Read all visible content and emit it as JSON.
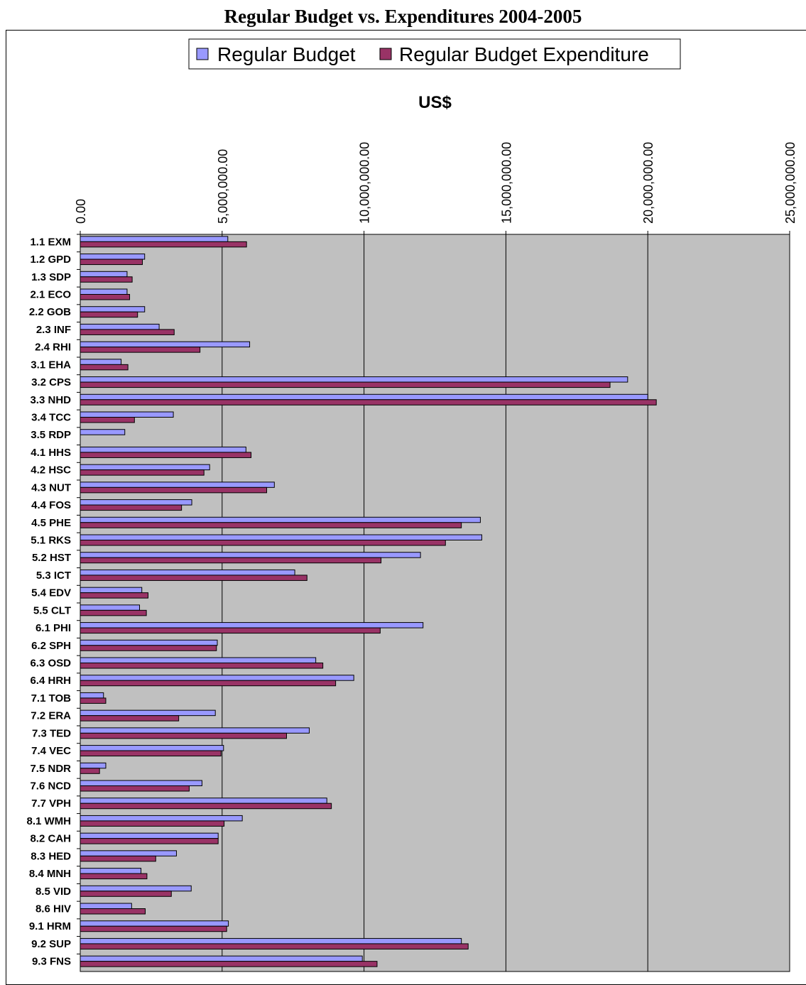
{
  "chart_data": {
    "type": "bar",
    "orientation": "horizontal",
    "title": "Regular Budget vs. Expenditures 2004-2005",
    "axis_title": "US$",
    "xlim": [
      0,
      25000000
    ],
    "x_ticks": [
      0,
      5000000,
      10000000,
      15000000,
      20000000,
      25000000
    ],
    "x_tick_labels": [
      "0.00",
      "5,000,000.00",
      "10,000,000.00",
      "15,000,000.00",
      "20,000,000.00",
      "25,000,000.00"
    ],
    "x_axis_position": "top",
    "gridlines": "vertical",
    "plot_background": "#c0c0c0",
    "legend_position": "top",
    "categories": [
      "1.1 EXM",
      "1.2 GPD",
      "1.3 SDP",
      "2.1 ECO",
      "2.2 GOB",
      "2.3 INF",
      "2.4 RHI",
      "3.1 EHA",
      "3.2 CPS",
      "3.3 NHD",
      "3.4 TCC",
      "3.5 RDP",
      "4.1 HHS",
      "4.2 HSC",
      "4.3 NUT",
      "4.4 FOS",
      "4.5 PHE",
      "5.1 RKS",
      "5.2 HST",
      "5.3 ICT",
      "5.4 EDV",
      "5.5 CLT",
      "6.1 PHI",
      "6.2 SPH",
      "6.3 OSD",
      "6.4 HRH",
      "7.1 TOB",
      "7.2 ERA",
      "7.3 TED",
      "7.4 VEC",
      "7.5 NDR",
      "7.6 NCD",
      "7.7 VPH",
      "8.1 WMH",
      "8.2 CAH",
      "8.3 HED",
      "8.4 MNH",
      "8.5 VID",
      "8.6 HIV",
      "9.1 HRM",
      "9.2 SUP",
      "9.3 FNS"
    ],
    "series": [
      {
        "name": "Regular Budget",
        "color": "#9999ff",
        "values": [
          5200000,
          2270000,
          1650000,
          1650000,
          2270000,
          2780000,
          5970000,
          1440000,
          19290000,
          20000000,
          3280000,
          1570000,
          5840000,
          4560000,
          6840000,
          3930000,
          14100000,
          14150000,
          11990000,
          7560000,
          2170000,
          2090000,
          12080000,
          4830000,
          8300000,
          9640000,
          820000,
          4760000,
          8070000,
          5050000,
          900000,
          4290000,
          8690000,
          5710000,
          4860000,
          3390000,
          2140000,
          3910000,
          1810000,
          5220000,
          13430000,
          9940000
        ]
      },
      {
        "name": "Regular Budget Expenditure",
        "color": "#993366",
        "values": [
          5860000,
          2190000,
          1830000,
          1740000,
          2020000,
          3310000,
          4220000,
          1680000,
          18670000,
          20300000,
          1910000,
          0,
          6020000,
          4360000,
          6570000,
          3570000,
          13430000,
          12870000,
          10600000,
          7990000,
          2390000,
          2330000,
          10570000,
          4800000,
          8550000,
          9000000,
          900000,
          3470000,
          7270000,
          4960000,
          680000,
          3840000,
          8850000,
          5070000,
          4860000,
          2660000,
          2350000,
          3210000,
          2290000,
          5160000,
          13670000,
          10460000
        ]
      }
    ]
  }
}
